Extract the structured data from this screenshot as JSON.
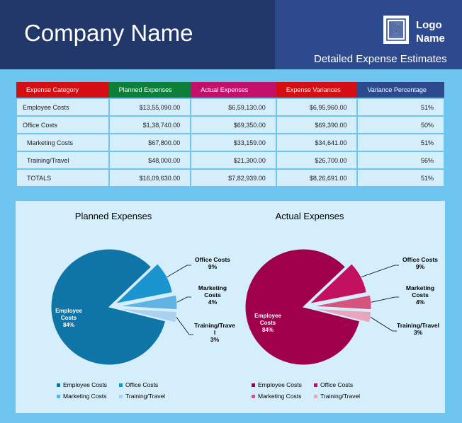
{
  "header": {
    "company_name": "Company Name",
    "logo_text_line1": "Logo",
    "logo_text_line2": "Name",
    "subtitle": "Detailed Expense Estimates"
  },
  "table": {
    "columns": [
      {
        "label": "Expense Category",
        "color": "#d40e12"
      },
      {
        "label": "Planned Expenses",
        "color": "#0e7f3a"
      },
      {
        "label": "Actual Expenses",
        "color": "#c2106b"
      },
      {
        "label": "Expense Variances",
        "color": "#d40e12"
      },
      {
        "label": "Variance Percentage",
        "color": "#2e4a8f"
      }
    ],
    "rows": [
      {
        "category": "Employee Costs",
        "planned": "$13,55,090.00",
        "actual": "$6,59,130.00",
        "variance": "$6,95,960.00",
        "pct": "51%"
      },
      {
        "category": "Office Costs",
        "planned": "$1,38,740.00",
        "actual": "$69,350.00",
        "variance": "$69,390.00",
        "pct": "50%"
      },
      {
        "category": "Marketing Costs",
        "planned": "$67,800.00",
        "actual": "$33,159.00",
        "variance": "$34,641.00",
        "pct": "51%"
      },
      {
        "category": "Training/Travel",
        "planned": "$48,000.00",
        "actual": "$21,300.00",
        "variance": "$26,700.00",
        "pct": "56%"
      },
      {
        "category": "TOTALS",
        "planned": "$16,09,630.00",
        "actual": "$7,82,939.00",
        "variance": "$8,26,691.00",
        "pct": "51%"
      }
    ]
  },
  "chart_data": [
    {
      "type": "pie",
      "title": "Planned Expenses",
      "categories": [
        "Employee Costs",
        "Office Costs",
        "Marketing Costs",
        "Training/Travel"
      ],
      "values": [
        84,
        9,
        4,
        3
      ],
      "slice_labels": [
        [
          "Employee",
          "Costs",
          "84%"
        ],
        [
          "Office Costs",
          "9%"
        ],
        [
          "Marketing",
          "Costs",
          "4%"
        ],
        [
          "Training/Trave",
          "l",
          "3%"
        ]
      ],
      "colors": [
        "#0f75a6",
        "#1b95cf",
        "#5fb3e2",
        "#a9d2f0"
      ],
      "legend": [
        "Employee Costs",
        "Office Costs",
        "Marketing Costs",
        "Training/Travel"
      ]
    },
    {
      "type": "pie",
      "title": "Actual Expenses",
      "categories": [
        "Employee Costs",
        "Office Costs",
        "Marketing Costs",
        "Training/Travel"
      ],
      "values": [
        84,
        9,
        4,
        3
      ],
      "slice_labels": [
        [
          "Employee",
          "Costs",
          "84%"
        ],
        [
          "Office Costs",
          "9%"
        ],
        [
          "Marketing",
          "Costs",
          "4%"
        ],
        [
          "Training/Travel",
          "3%"
        ]
      ],
      "colors": [
        "#a0004b",
        "#c4115f",
        "#d4547d",
        "#e8a6bd"
      ],
      "legend": [
        "Employee Costs",
        "Office Costs",
        "Marketing Costs",
        "Training/Travel"
      ]
    }
  ]
}
